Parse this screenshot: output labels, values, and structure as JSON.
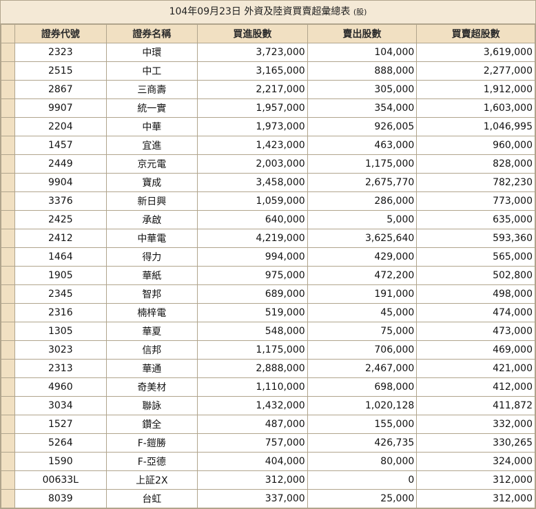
{
  "title": "104年09月23日 外資及陸資買賣超彙總表",
  "title_unit": "(股)",
  "headers": [
    "證券代號",
    "證券名稱",
    "買進股數",
    "賣出股數",
    "買賣超股數"
  ],
  "rows": [
    {
      "code": "2323",
      "name": "中環",
      "buy": "3,723,000",
      "sell": "104,000",
      "net": "3,619,000"
    },
    {
      "code": "2515",
      "name": "中工",
      "buy": "3,165,000",
      "sell": "888,000",
      "net": "2,277,000"
    },
    {
      "code": "2867",
      "name": "三商壽",
      "buy": "2,217,000",
      "sell": "305,000",
      "net": "1,912,000"
    },
    {
      "code": "9907",
      "name": "統一實",
      "buy": "1,957,000",
      "sell": "354,000",
      "net": "1,603,000"
    },
    {
      "code": "2204",
      "name": "中華",
      "buy": "1,973,000",
      "sell": "926,005",
      "net": "1,046,995"
    },
    {
      "code": "1457",
      "name": "宜進",
      "buy": "1,423,000",
      "sell": "463,000",
      "net": "960,000"
    },
    {
      "code": "2449",
      "name": "京元電",
      "buy": "2,003,000",
      "sell": "1,175,000",
      "net": "828,000"
    },
    {
      "code": "9904",
      "name": "寶成",
      "buy": "3,458,000",
      "sell": "2,675,770",
      "net": "782,230"
    },
    {
      "code": "3376",
      "name": "新日興",
      "buy": "1,059,000",
      "sell": "286,000",
      "net": "773,000"
    },
    {
      "code": "2425",
      "name": "承啟",
      "buy": "640,000",
      "sell": "5,000",
      "net": "635,000"
    },
    {
      "code": "2412",
      "name": "中華電",
      "buy": "4,219,000",
      "sell": "3,625,640",
      "net": "593,360"
    },
    {
      "code": "1464",
      "name": "得力",
      "buy": "994,000",
      "sell": "429,000",
      "net": "565,000"
    },
    {
      "code": "1905",
      "name": "華紙",
      "buy": "975,000",
      "sell": "472,200",
      "net": "502,800"
    },
    {
      "code": "2345",
      "name": "智邦",
      "buy": "689,000",
      "sell": "191,000",
      "net": "498,000"
    },
    {
      "code": "2316",
      "name": "楠梓電",
      "buy": "519,000",
      "sell": "45,000",
      "net": "474,000"
    },
    {
      "code": "1305",
      "name": "華夏",
      "buy": "548,000",
      "sell": "75,000",
      "net": "473,000"
    },
    {
      "code": "3023",
      "name": "信邦",
      "buy": "1,175,000",
      "sell": "706,000",
      "net": "469,000"
    },
    {
      "code": "2313",
      "name": "華通",
      "buy": "2,888,000",
      "sell": "2,467,000",
      "net": "421,000"
    },
    {
      "code": "4960",
      "name": "奇美材",
      "buy": "1,110,000",
      "sell": "698,000",
      "net": "412,000"
    },
    {
      "code": "3034",
      "name": "聯詠",
      "buy": "1,432,000",
      "sell": "1,020,128",
      "net": "411,872"
    },
    {
      "code": "1527",
      "name": "鑽全",
      "buy": "487,000",
      "sell": "155,000",
      "net": "332,000"
    },
    {
      "code": "5264",
      "name": "F-鎧勝",
      "buy": "757,000",
      "sell": "426,735",
      "net": "330,265"
    },
    {
      "code": "1590",
      "name": "F-亞德",
      "buy": "404,000",
      "sell": "80,000",
      "net": "324,000"
    },
    {
      "code": "00633L",
      "name": "上証2X",
      "buy": "312,000",
      "sell": "0",
      "net": "312,000"
    },
    {
      "code": "8039",
      "name": "台虹",
      "buy": "337,000",
      "sell": "25,000",
      "net": "312,000"
    }
  ]
}
